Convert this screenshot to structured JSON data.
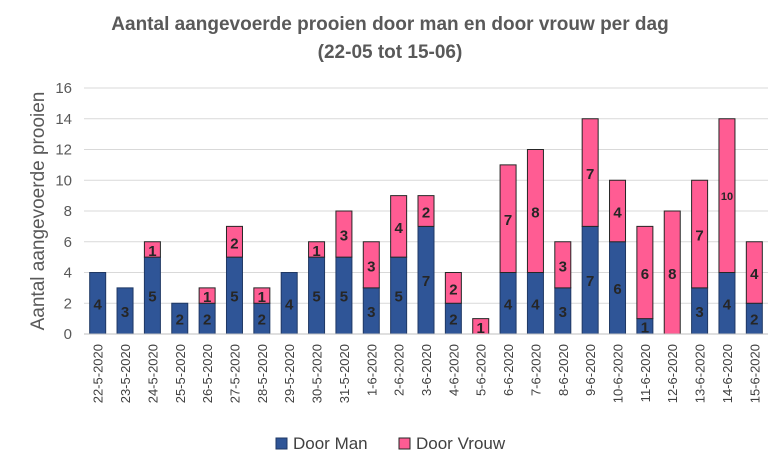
{
  "chart_data": {
    "type": "bar",
    "stacked": true,
    "title_line1": "Aantal aangevoerde prooien door man en door vrouw per dag",
    "title_line2": "(22-05 tot 15-06)",
    "xlabel": "",
    "ylabel": "Aantal aangevoerde prooien",
    "ylim": [
      0,
      16
    ],
    "yticks": [
      0,
      2,
      4,
      6,
      8,
      10,
      12,
      14,
      16
    ],
    "grid": true,
    "legend_position": "bottom",
    "categories": [
      "22-5-2020",
      "23-5-2020",
      "24-5-2020",
      "25-5-2020",
      "26-5-2020",
      "27-5-2020",
      "28-5-2020",
      "29-5-2020",
      "30-5-2020",
      "31-5-2020",
      "1-6-2020",
      "2-6-2020",
      "3-6-2020",
      "4-6-2020",
      "5-6-2020",
      "6-6-2020",
      "7-6-2020",
      "8-6-2020",
      "9-6-2020",
      "10-6-2020",
      "11-6-2020",
      "12-6-2020",
      "13-6-2020",
      "14-6-2020",
      "15-6-2020"
    ],
    "series": [
      {
        "name": "Door Man",
        "color": "#2f5597",
        "values": [
          4,
          3,
          5,
          2,
          2,
          5,
          2,
          4,
          5,
          5,
          3,
          5,
          7,
          2,
          0,
          4,
          4,
          3,
          7,
          6,
          1,
          0,
          3,
          4,
          2
        ]
      },
      {
        "name": "Door Vrouw",
        "color": "#ff5c93",
        "values": [
          0,
          0,
          1,
          0,
          1,
          2,
          1,
          0,
          1,
          3,
          3,
          4,
          2,
          2,
          1,
          7,
          8,
          3,
          7,
          4,
          6,
          8,
          7,
          10,
          4
        ]
      }
    ]
  }
}
